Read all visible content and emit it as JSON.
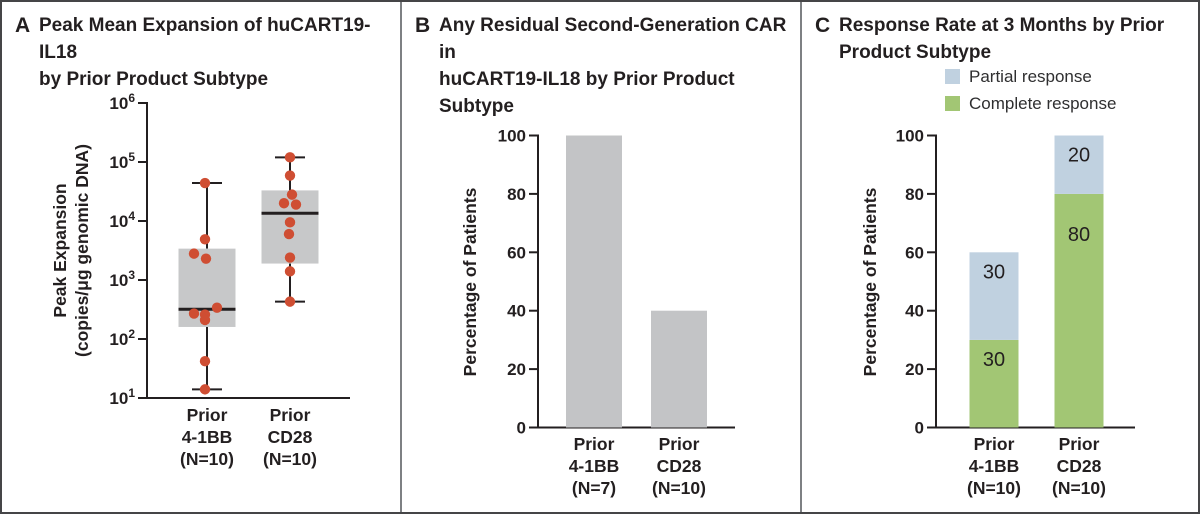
{
  "colors": {
    "text": "#231f20",
    "axis": "#231f20",
    "box_gray": "#c7c8c9",
    "bar_gray": "#c3c4c6",
    "dot_red": "#cf4e33",
    "green": "#a2c674",
    "blue": "#c0d1e0",
    "border": "#454547",
    "divider": "#7e8083"
  },
  "panels": {
    "A": {
      "letter": "A",
      "title_lines": [
        "Peak Mean Expansion of huCART19-IL18",
        "by Prior Product Subtype"
      ]
    },
    "B": {
      "letter": "B",
      "title_lines": [
        "Any Residual Second-Generation CAR in",
        "huCART19-IL18 by Prior Product Subtype"
      ]
    },
    "C": {
      "letter": "C",
      "title_lines": [
        "Response Rate at 3 Months by Prior",
        "Product Subtype"
      ],
      "legend": [
        {
          "label": "Partial response",
          "color": "#c0d1e0"
        },
        {
          "label": "Complete response",
          "color": "#a2c674"
        }
      ]
    }
  },
  "chart_data": [
    {
      "panel": "A",
      "type": "box-scatter",
      "title": "Peak Mean Expansion of huCART19-IL18 by Prior Product Subtype",
      "ylabel": "Peak Expansion (copies/μg genomic DNA)",
      "ylabel_lines": [
        "Peak Expansion",
        "(copies/μg genomic DNA)"
      ],
      "yscale": "log10",
      "ylim": [
        10,
        1000000
      ],
      "ytick_exponents": [
        1,
        2,
        3,
        4,
        5,
        6
      ],
      "categories": [
        "Prior 4-1BB (N=10)",
        "Prior CD28 (N=10)"
      ],
      "category_lines": [
        [
          "Prior",
          "4-1BB",
          "(N=10)"
        ],
        [
          "Prior",
          "CD28",
          "(N=10)"
        ]
      ],
      "groups": [
        {
          "name": "Prior 4-1BB",
          "n": 10,
          "whisker_low": 14,
          "q1": 160,
          "median": 320,
          "q3": 3400,
          "whisker_high": 44000,
          "points": [
            44000,
            4900,
            2800,
            2300,
            340,
            270,
            260,
            210,
            42,
            14
          ]
        },
        {
          "name": "Prior CD28",
          "n": 10,
          "whisker_low": 430,
          "q1": 1900,
          "median": 13500,
          "q3": 33000,
          "whisker_high": 120000,
          "points": [
            120000,
            59000,
            28000,
            20000,
            19000,
            9500,
            6000,
            2400,
            1400,
            430
          ]
        }
      ]
    },
    {
      "panel": "B",
      "type": "bar",
      "title": "Any Residual Second-Generation CAR in huCART19-IL18 by Prior Product Subtype",
      "ylabel": "Percentage of Patients",
      "ylim": [
        0,
        100
      ],
      "yticks": [
        0,
        20,
        40,
        60,
        80,
        100
      ],
      "categories": [
        "Prior 4-1BB (N=7)",
        "Prior CD28 (N=10)"
      ],
      "category_lines": [
        [
          "Prior",
          "4-1BB",
          "(N=7)"
        ],
        [
          "Prior",
          "CD28",
          "(N=10)"
        ]
      ],
      "values": [
        100,
        40
      ]
    },
    {
      "panel": "C",
      "type": "stacked-bar",
      "title": "Response Rate at 3 Months by Prior Product Subtype",
      "ylabel": "Percentage of Patients",
      "ylim": [
        0,
        100
      ],
      "yticks": [
        0,
        20,
        40,
        60,
        80,
        100
      ],
      "categories": [
        "Prior 4-1BB (N=10)",
        "Prior CD28 (N=10)"
      ],
      "category_lines": [
        [
          "Prior",
          "4-1BB",
          "(N=10)"
        ],
        [
          "Prior",
          "CD28",
          "(N=10)"
        ]
      ],
      "legend": [
        "Partial response",
        "Complete response"
      ],
      "legend_position": "top-right",
      "series": [
        {
          "name": "Complete response",
          "color_key": "green",
          "values": [
            30,
            80
          ]
        },
        {
          "name": "Partial response",
          "color_key": "blue",
          "values": [
            30,
            20
          ]
        }
      ]
    }
  ]
}
